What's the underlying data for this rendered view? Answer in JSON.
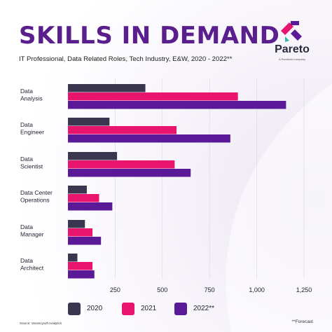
{
  "header": {
    "title": "SKILLS IN DEMAND",
    "subtitle": "IT Professional, Data Related Roles, Tech Industry, E&W, 2020 - 2022**"
  },
  "logo": {
    "name": "Pareto",
    "tagline": "A Randstad company"
  },
  "footer": {
    "source": "Source: Vacancysoft Analytics",
    "forecast_note": "**Forecast"
  },
  "colors": {
    "title": "#5a1f8c",
    "series_2020": "#3a3650",
    "series_2021": "#e8146e",
    "series_2022": "#5a1996",
    "logo_accent_1": "#e8146e",
    "logo_accent_2": "#5a1996",
    "logo_accent_3": "#2fb8a6"
  },
  "chart_data": {
    "type": "bar",
    "orientation": "horizontal",
    "categories": [
      "Data Analysis",
      "Data Engineer",
      "Data Scientist",
      "Data Center Operations",
      "Data Manager",
      "Data Architect"
    ],
    "category_lines": [
      [
        "Data",
        "Analysis"
      ],
      [
        "Data",
        "Engineer"
      ],
      [
        "Data",
        "Scientist"
      ],
      [
        "Data Center",
        "Operations"
      ],
      [
        "Data",
        "Manager"
      ],
      [
        "Data",
        "Architect"
      ]
    ],
    "series": [
      {
        "name": "2020",
        "values": [
          410,
          220,
          260,
          100,
          90,
          50
        ]
      },
      {
        "name": "2021",
        "values": [
          900,
          575,
          565,
          165,
          130,
          130
        ]
      },
      {
        "name": "2022**",
        "values": [
          1155,
          860,
          650,
          235,
          175,
          140
        ]
      }
    ],
    "xlim": [
      0,
      1250
    ],
    "xticks": [
      250,
      500,
      750,
      1000,
      1250
    ],
    "xtick_labels": [
      "250",
      "500",
      "750",
      "1,000",
      "1,250"
    ],
    "grid": true,
    "legend": "bottom"
  }
}
